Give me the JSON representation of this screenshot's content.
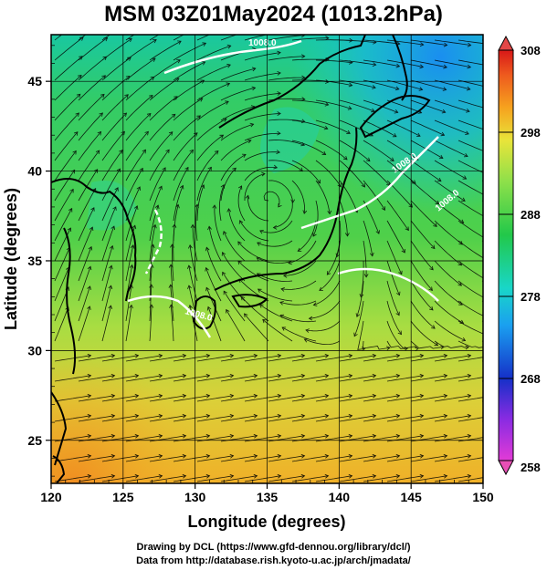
{
  "title": "MSM 03Z01May2024 (1013.2hPa)",
  "x_axis": {
    "label": "Longitude (degrees)",
    "ticks": [
      120,
      125,
      130,
      135,
      140,
      145,
      150
    ],
    "range": [
      120,
      150
    ]
  },
  "y_axis": {
    "label": "Latitude  (degrees)",
    "ticks": [
      25,
      30,
      35,
      40,
      45
    ],
    "range": [
      22.6,
      47.6
    ]
  },
  "colorbar": {
    "ticks": [
      258,
      268,
      278,
      288,
      298,
      308
    ],
    "range": [
      258,
      308
    ],
    "colors": [
      "#e23bd6",
      "#8a2be2",
      "#1530c8",
      "#1aa0f0",
      "#19d6c8",
      "#22c84a",
      "#8ee04a",
      "#e8e43a",
      "#f6a21e",
      "#ee5a1e",
      "#d81818"
    ]
  },
  "contours": [
    "1008.0",
    "1008.0",
    "1008.0",
    "1008.0"
  ],
  "credits": [
    "Drawing by DCL (https://www.gfd-dennou.org/library/dcl/)",
    "Data from http://database.rish.kyoto-u.ac.jp/arch/jmadata/"
  ],
  "colors": {
    "land_outline": "#000000",
    "contour": "#ffffff",
    "streamline": "#000000"
  }
}
